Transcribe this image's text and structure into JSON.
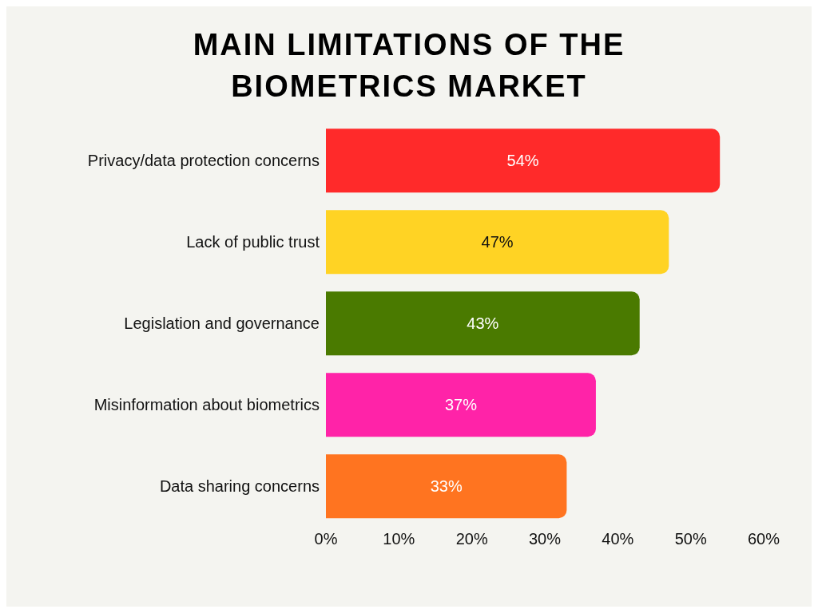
{
  "chart_data": {
    "type": "bar",
    "orientation": "horizontal",
    "title": "MAIN LIMITATIONS OF THE BIOMETRICS MARKET",
    "categories": [
      "Privacy/data protection concerns",
      "Lack of public trust",
      "Legislation and governance",
      "Misinformation about biometrics",
      "Data sharing concerns"
    ],
    "values": [
      54,
      47,
      43,
      37,
      33
    ],
    "colors": [
      "#ff2a2a",
      "#ffd324",
      "#4a7a00",
      "#ff23a8",
      "#ff7420"
    ],
    "value_labels": [
      "54%",
      "47%",
      "43%",
      "37%",
      "33%"
    ],
    "xlim": [
      0,
      60
    ],
    "xticks": [
      {
        "value": 0,
        "label": "0%"
      },
      {
        "value": 10,
        "label": "10%"
      },
      {
        "value": 20,
        "label": "20%"
      },
      {
        "value": 30,
        "label": "30%"
      },
      {
        "value": 40,
        "label": "40%"
      },
      {
        "value": 50,
        "label": "50%"
      },
      {
        "value": 60,
        "label": "60%"
      }
    ],
    "grid": false,
    "legend": false
  }
}
